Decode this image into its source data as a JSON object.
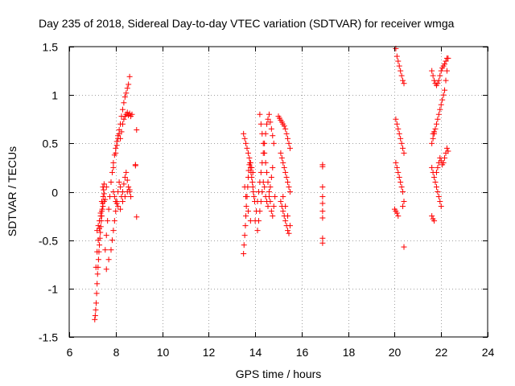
{
  "chart_data": {
    "type": "scatter",
    "title": "Day 235 of 2018, Sidereal Day-to-day VTEC variation (SDTVAR) for receiver wmga",
    "xlabel": "GPS time / hours",
    "ylabel": "SDTVAR / TECUs",
    "xlim": [
      6,
      24
    ],
    "ylim": [
      -1.5,
      1.5
    ],
    "xticks": [
      6,
      8,
      10,
      12,
      14,
      16,
      18,
      20,
      22,
      24
    ],
    "yticks": [
      -1.5,
      -1,
      -0.5,
      0,
      0.5,
      1,
      1.5
    ],
    "xtick_labels": [
      "6",
      "8",
      "10",
      "12",
      "14",
      "16",
      "18",
      "20",
      "22",
      "24"
    ],
    "ytick_labels": [
      "-1.5",
      "-1",
      "-0.5",
      "0",
      "0.5",
      "1",
      "1.5"
    ],
    "grid": true,
    "legend": "none",
    "marker": "+",
    "color": "#ff0000",
    "series": [
      {
        "name": "SDTVAR",
        "x": [
          7.1,
          7.12,
          7.14,
          7.16,
          7.18,
          7.2,
          7.22,
          7.24,
          7.26,
          7.28,
          7.3,
          7.32,
          7.34,
          7.36,
          7.38,
          7.4,
          7.42,
          7.44,
          7.46,
          7.48,
          7.5,
          7.15,
          7.2,
          7.25,
          7.3,
          7.35,
          7.4,
          7.45,
          7.5,
          7.55,
          7.6,
          7.65,
          7.7,
          7.75,
          7.8,
          7.85,
          7.9,
          7.95,
          8.0,
          8.05,
          8.1,
          8.15,
          8.2,
          8.25,
          8.3,
          8.35,
          8.4,
          8.45,
          8.5,
          8.55,
          8.6,
          7.6,
          7.7,
          7.8,
          7.85,
          7.9,
          7.95,
          8.0,
          8.05,
          8.1,
          8.15,
          8.2,
          8.25,
          8.3,
          8.35,
          8.4,
          8.45,
          8.5,
          8.55,
          8.6,
          8.65,
          7.8,
          7.9,
          8.0,
          8.05,
          8.1,
          8.15,
          8.2,
          8.25,
          8.3,
          8.35,
          8.4,
          8.45,
          8.5,
          8.55,
          8.6,
          8.65,
          8.7,
          7.2,
          7.25,
          7.3,
          7.35,
          7.4,
          7.45,
          7.5,
          7.55,
          7.6,
          7.9,
          7.95,
          8.0,
          8.05,
          8.1,
          8.2,
          8.3,
          8.4,
          8.5,
          8.6,
          8.9,
          8.9,
          8.85,
          8.85,
          13.5,
          13.52,
          13.55,
          13.58,
          13.6,
          13.62,
          13.65,
          13.68,
          13.7,
          13.72,
          13.75,
          13.78,
          13.8,
          13.82,
          13.85,
          13.88,
          13.9,
          13.92,
          13.95,
          13.98,
          13.5,
          13.55,
          13.6,
          13.65,
          13.7,
          13.75,
          13.8,
          13.85,
          13.9,
          13.55,
          13.6,
          13.7,
          13.8,
          14.0,
          14.05,
          14.1,
          14.15,
          14.2,
          14.25,
          14.3,
          14.35,
          14.4,
          14.45,
          14.5,
          14.55,
          14.6,
          14.65,
          14.7,
          14.75,
          14.8,
          14.1,
          14.15,
          14.2,
          14.25,
          14.3,
          14.35,
          14.4,
          14.45,
          14.5,
          14.55,
          14.6,
          14.65,
          14.7,
          14.75,
          14.2,
          14.25,
          14.3,
          14.35,
          14.4,
          14.45,
          14.5,
          14.55,
          14.6,
          14.65,
          14.7,
          14.75,
          14.8,
          14.85,
          15.0,
          15.05,
          15.1,
          15.15,
          15.2,
          15.25,
          15.3,
          15.35,
          15.4,
          15.45,
          15.5,
          15.1,
          15.15,
          15.2,
          15.25,
          15.3,
          15.35,
          15.4,
          15.45,
          15.5,
          15.1,
          15.15,
          15.2,
          15.25,
          15.3,
          15.35,
          15.4,
          15.45,
          15.5,
          15.2,
          15.3,
          15.4,
          16.9,
          16.9,
          16.9,
          16.9,
          16.9,
          16.9,
          16.9,
          16.9,
          16.9,
          20.05,
          20.1,
          20.15,
          20.2,
          20.25,
          20.3,
          20.35,
          20.4,
          20.05,
          20.1,
          20.15,
          20.2,
          20.25,
          20.3,
          20.35,
          20.4,
          20.05,
          20.1,
          20.15,
          20.2,
          20.25,
          20.3,
          20.35,
          20.4,
          20.4,
          20.0,
          20.05,
          20.1,
          20.15,
          20.35,
          21.6,
          21.65,
          21.7,
          21.75,
          21.8,
          21.85,
          21.9,
          21.95,
          22.0,
          22.05,
          22.1,
          22.15,
          22.2,
          22.25,
          22.3,
          21.6,
          21.65,
          21.7,
          21.75,
          21.8,
          21.85,
          21.9,
          21.95,
          22.0,
          22.05,
          22.1,
          22.15,
          22.2,
          22.25,
          21.6,
          21.65,
          21.7,
          21.75,
          21.8,
          21.85,
          21.9,
          21.95,
          22.0,
          21.8,
          21.85,
          21.9,
          21.95,
          22.0,
          22.05,
          22.1,
          22.15,
          22.2,
          22.25,
          22.3,
          21.6,
          21.65,
          21.7,
          21.65,
          21.7
        ],
        "y": [
          -1.32,
          -1.28,
          -1.22,
          -1.15,
          -1.05,
          -0.95,
          -0.85,
          -0.78,
          -0.7,
          -0.62,
          -0.55,
          -0.48,
          -0.42,
          -0.36,
          -0.3,
          -0.25,
          -0.18,
          -0.12,
          -0.05,
          0.02,
          0.08,
          -0.78,
          -0.62,
          -0.5,
          -0.38,
          -0.22,
          -0.1,
          0.05,
          -0.02,
          -0.6,
          -0.45,
          -0.3,
          -0.18,
          -0.05,
          0.1,
          0.2,
          0.3,
          0.38,
          0.45,
          0.52,
          0.58,
          0.64,
          0.7,
          0.78,
          0.85,
          0.92,
          0.98,
          1.02,
          1.07,
          1.11,
          1.19,
          -0.8,
          -0.7,
          -0.6,
          -0.5,
          -0.4,
          -0.3,
          -0.2,
          -0.1,
          0.0,
          0.1,
          0.05,
          -0.05,
          0.0,
          0.08,
          0.15,
          0.2,
          0.12,
          0.05,
          0.0,
          -0.05,
          0.1,
          0.25,
          0.4,
          0.48,
          0.55,
          0.6,
          0.55,
          0.62,
          0.7,
          0.75,
          0.78,
          0.8,
          0.82,
          0.79,
          0.81,
          0.78,
          0.8,
          -0.4,
          -0.35,
          -0.3,
          -0.25,
          -0.2,
          -0.15,
          -0.1,
          -0.08,
          0.05,
          0.0,
          -0.05,
          -0.1,
          -0.12,
          -0.15,
          -0.18,
          -0.1,
          -0.05,
          0.0,
          0.02,
          0.64,
          -0.26,
          0.27,
          0.28,
          -0.64,
          -0.55,
          -0.45,
          -0.35,
          -0.25,
          -0.15,
          -0.05,
          0.05,
          0.15,
          0.22,
          0.28,
          0.3,
          0.25,
          0.2,
          0.15,
          0.1,
          0.05,
          0.0,
          -0.05,
          -0.1,
          0.6,
          0.55,
          0.5,
          0.45,
          0.4,
          0.35,
          0.3,
          0.25,
          0.2,
          0.05,
          -0.05,
          -0.2,
          -0.3,
          -0.3,
          -0.2,
          -0.1,
          0.0,
          0.1,
          0.2,
          0.3,
          0.4,
          0.5,
          0.6,
          0.7,
          0.75,
          0.8,
          0.72,
          0.65,
          0.58,
          0.5,
          -0.4,
          -0.3,
          -0.2,
          -0.1,
          0.0,
          0.1,
          0.05,
          -0.05,
          -0.1,
          -0.15,
          -0.05,
          0.05,
          0.15,
          0.25,
          0.8,
          0.7,
          0.6,
          0.5,
          0.4,
          0.3,
          0.2,
          0.1,
          0.0,
          -0.1,
          -0.2,
          -0.25,
          -0.15,
          -0.05,
          0.78,
          0.76,
          0.74,
          0.72,
          0.7,
          0.68,
          0.65,
          0.6,
          0.55,
          0.5,
          0.45,
          0.4,
          0.35,
          0.3,
          0.25,
          0.2,
          0.15,
          0.1,
          0.05,
          0.0,
          -0.1,
          -0.15,
          -0.2,
          -0.25,
          -0.3,
          -0.35,
          -0.4,
          -0.43,
          -0.35,
          -0.05,
          -0.15,
          -0.25,
          0.28,
          0.26,
          0.05,
          -0.05,
          -0.12,
          -0.2,
          -0.27,
          -0.48,
          -0.53,
          1.48,
          1.4,
          1.35,
          1.3,
          1.25,
          1.2,
          1.15,
          1.12,
          0.75,
          0.7,
          0.65,
          0.6,
          0.55,
          0.5,
          0.45,
          0.4,
          0.3,
          0.25,
          0.2,
          0.15,
          0.1,
          0.05,
          0.0,
          -0.1,
          -0.57,
          -0.18,
          -0.2,
          -0.22,
          -0.25,
          -0.15,
          0.5,
          0.55,
          0.6,
          0.65,
          0.7,
          0.75,
          0.8,
          0.85,
          0.9,
          0.95,
          1.0,
          1.05,
          1.15,
          1.25,
          1.38,
          1.25,
          1.2,
          1.15,
          1.12,
          1.1,
          1.12,
          1.15,
          1.2,
          1.25,
          1.28,
          1.3,
          1.32,
          1.35,
          1.38,
          0.25,
          0.2,
          0.15,
          0.1,
          0.05,
          0.0,
          -0.05,
          -0.1,
          -0.15,
          0.2,
          0.25,
          0.3,
          0.35,
          0.32,
          0.28,
          0.3,
          0.35,
          0.4,
          0.45,
          0.42,
          -0.25,
          -0.28,
          -0.3,
          0.6,
          0.62
        ]
      }
    ]
  }
}
